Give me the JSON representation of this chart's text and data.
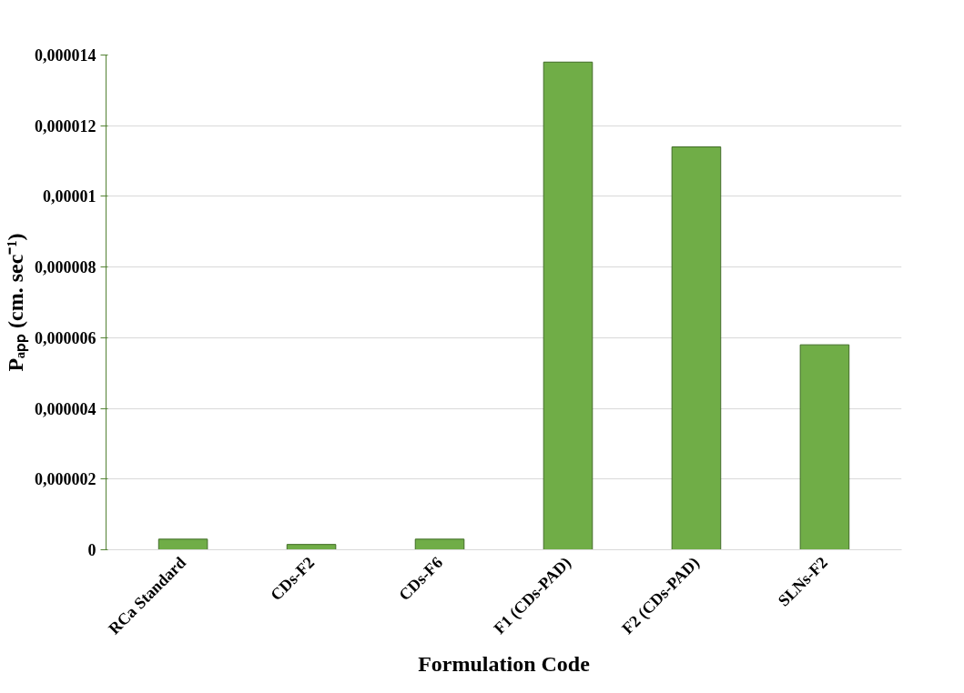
{
  "chart_data": {
    "type": "bar",
    "xlabel": "Formulation Code",
    "ylabel": "Pₐₚₚ (cm. sec⁻¹)",
    "categories": [
      "RCa Standard",
      "CDs-F2",
      "CDs-F6",
      "F1 (CDs-PAD)",
      "F2 (CDs-PAD)",
      "SLNs-F2"
    ],
    "values": [
      3e-07,
      1.5e-07,
      3e-07,
      1.38e-05,
      1.14e-05,
      5.8e-06
    ],
    "color": "#70ad47",
    "ylim": [
      0,
      1.4e-05
    ],
    "yticks": [
      0,
      {
        "value": 2e-06,
        "label": "0,000002"
      },
      {
        "value": 4e-06,
        "label": "0,000004"
      },
      {
        "value": 6e-06,
        "label": "0,000006"
      },
      {
        "value": 8e-06,
        "label": "0,000008"
      },
      {
        "value": 1e-05,
        "label": "0,00001"
      },
      {
        "value": 1.2e-05,
        "label": "0,000012"
      },
      {
        "value": 1.4e-05,
        "label": "0,000014"
      }
    ],
    "grid": "y"
  }
}
